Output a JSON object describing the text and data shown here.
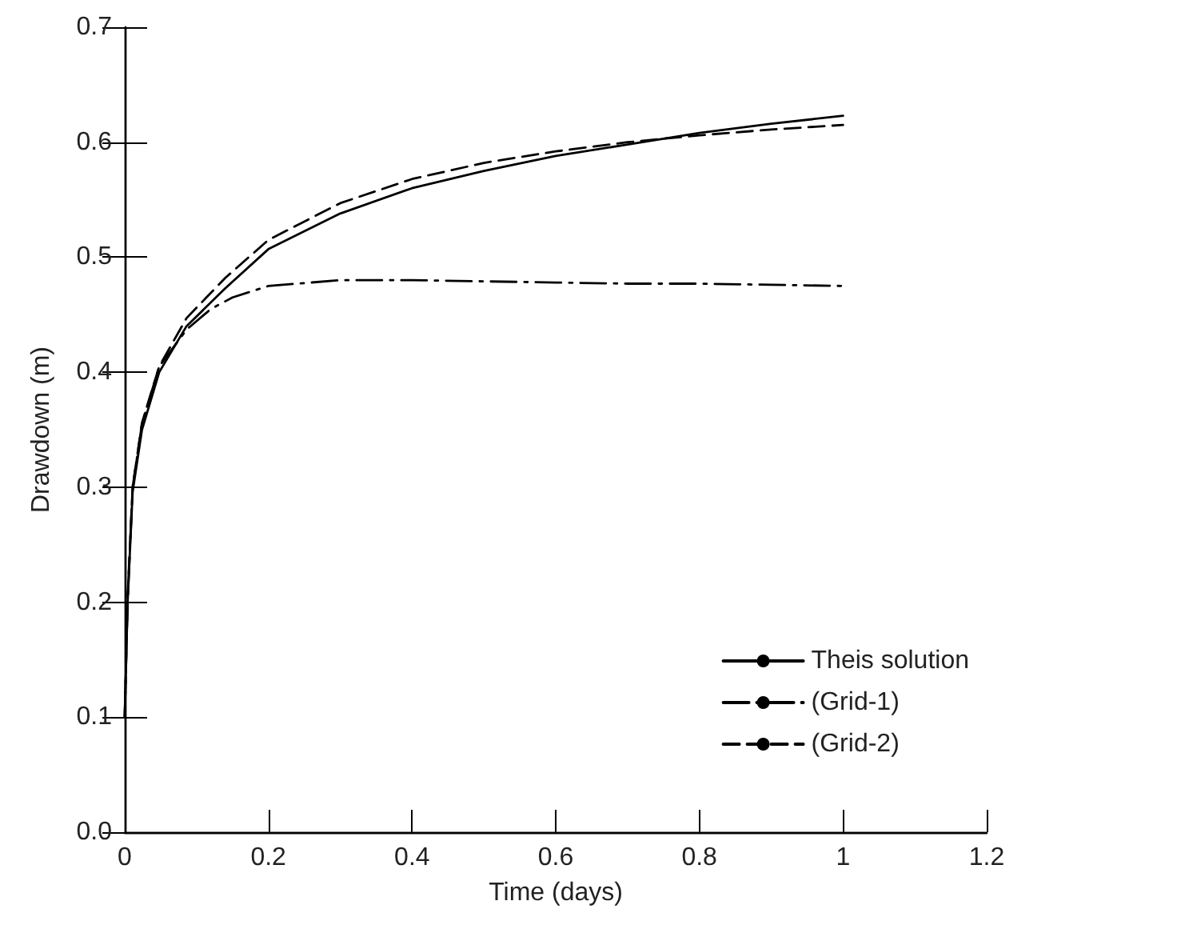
{
  "chart_data": {
    "type": "line",
    "xlabel": "Time (days)",
    "ylabel": "Drawdown (m)",
    "xlim": [
      0,
      1.2
    ],
    "xticks": [
      0,
      0.2,
      0.4,
      0.6,
      0.8,
      1,
      1.2
    ],
    "ylim": [
      0,
      0.7
    ],
    "yticks": [
      {
        "value": 0,
        "label": "0.0"
      },
      0.1,
      0.2,
      0.3,
      0.4,
      0.5,
      0.6,
      0.7
    ],
    "grid": false,
    "legend": "bottom right",
    "marker": "none",
    "series": [
      {
        "name": "Theis solution",
        "color": "#000000",
        "line_style": "solid",
        "x": [
          0,
          0.004,
          0.011,
          0.024,
          0.048,
          0.086,
          0.14,
          0.2,
          0.3,
          0.4,
          0.5,
          0.6,
          0.7,
          0.8,
          0.9,
          1
        ],
        "values": [
          0.1,
          0.2,
          0.296,
          0.35,
          0.4,
          0.44,
          0.473,
          0.507,
          0.538,
          0.56,
          0.575,
          0.588,
          0.598,
          0.608,
          0.616,
          0.623
        ]
      },
      {
        "name": "(Grid-1)",
        "color": "#000000",
        "line_style": "dashdot",
        "x": [
          0,
          0.004,
          0.011,
          0.024,
          0.048,
          0.086,
          0.12,
          0.15,
          0.2,
          0.3,
          0.4,
          0.5,
          0.6,
          0.7,
          0.8,
          0.9,
          1
        ],
        "values": [
          0.1,
          0.2,
          0.3,
          0.355,
          0.405,
          0.437,
          0.455,
          0.465,
          0.475,
          0.48,
          0.48,
          0.479,
          0.478,
          0.477,
          0.477,
          0.476,
          0.475
        ]
      },
      {
        "name": "(Grid-2)",
        "color": "#000000",
        "line_style": "dashed",
        "x": [
          0,
          0.004,
          0.011,
          0.024,
          0.048,
          0.086,
          0.14,
          0.2,
          0.3,
          0.4,
          0.5,
          0.6,
          0.7,
          0.8,
          0.9,
          1
        ],
        "values": [
          0.1,
          0.205,
          0.3,
          0.356,
          0.405,
          0.447,
          0.482,
          0.515,
          0.547,
          0.568,
          0.582,
          0.592,
          0.6,
          0.606,
          0.611,
          0.615
        ]
      }
    ]
  }
}
